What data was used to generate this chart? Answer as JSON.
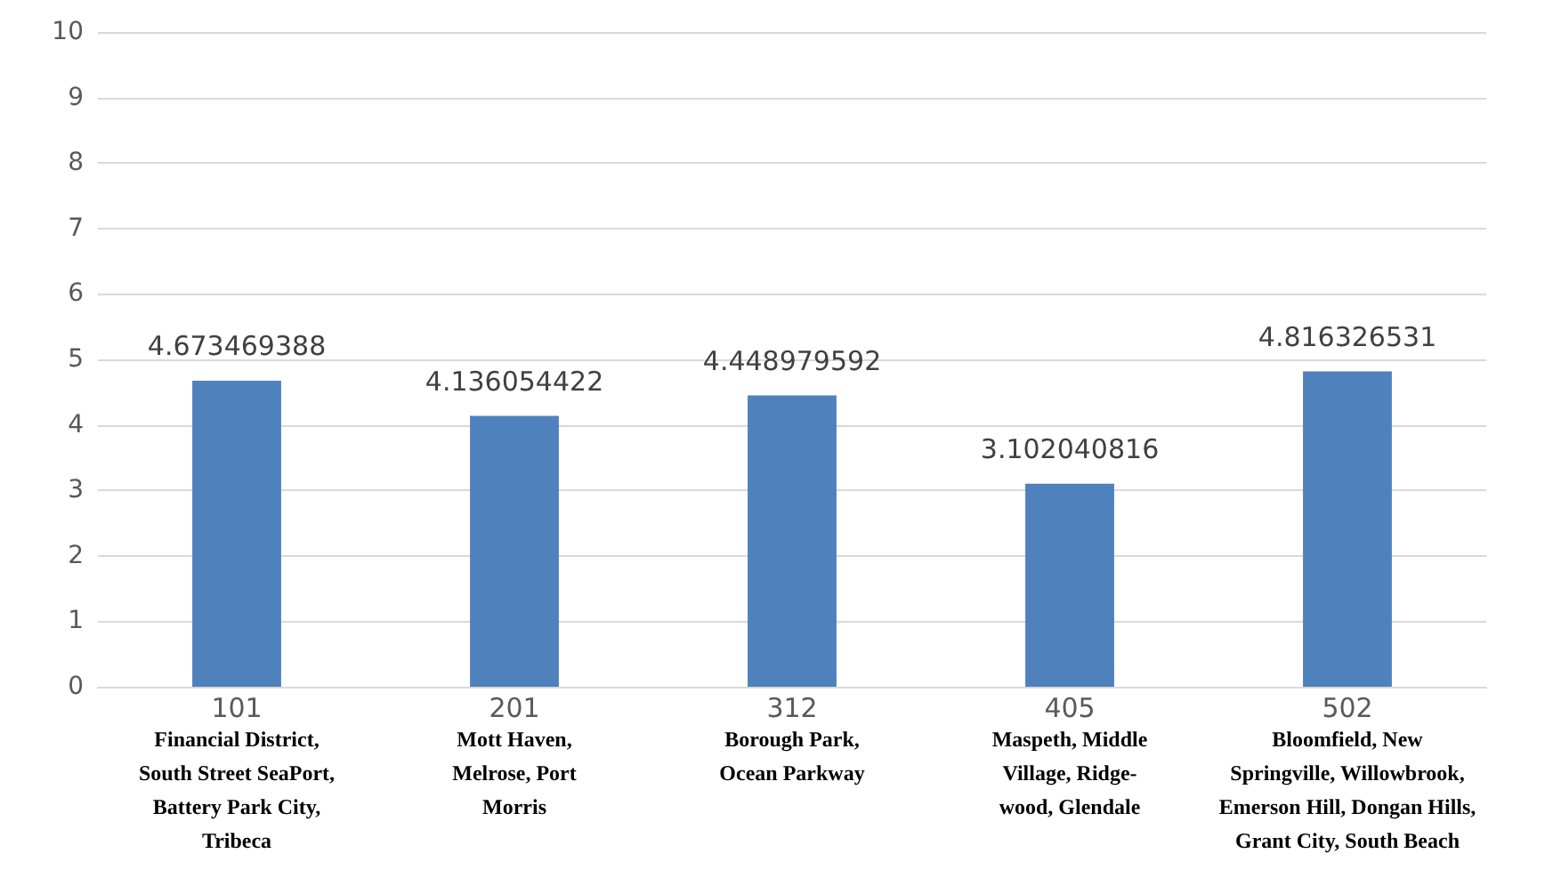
{
  "chart_data": {
    "type": "bar",
    "categories": [
      "101\nFinancial District,\nSouth Street SeaPort,\nBattery Park City,\nTribeca",
      "201\nMott Haven,\nMelrose, Port\nMorris",
      "312\nBorough Park,\nOcean Parkway",
      "405\nMaspeth, Middle\nVillage, Ridge-\nwood, Glendale",
      "502\nBloomfield, New\nSpringville, Willowbrook,\nEmerson Hill, Dongan Hills,\nGrant City, South Beach"
    ],
    "values": [
      4.673469388,
      4.136054422,
      4.448979592,
      3.102040816,
      4.816326531
    ],
    "color": "#4f81bd",
    "ylim": [
      0,
      10
    ],
    "yticks": [
      0,
      1,
      2,
      3,
      4,
      5,
      6,
      7,
      8,
      9,
      10
    ],
    "grid": true,
    "data_labels": true
  }
}
